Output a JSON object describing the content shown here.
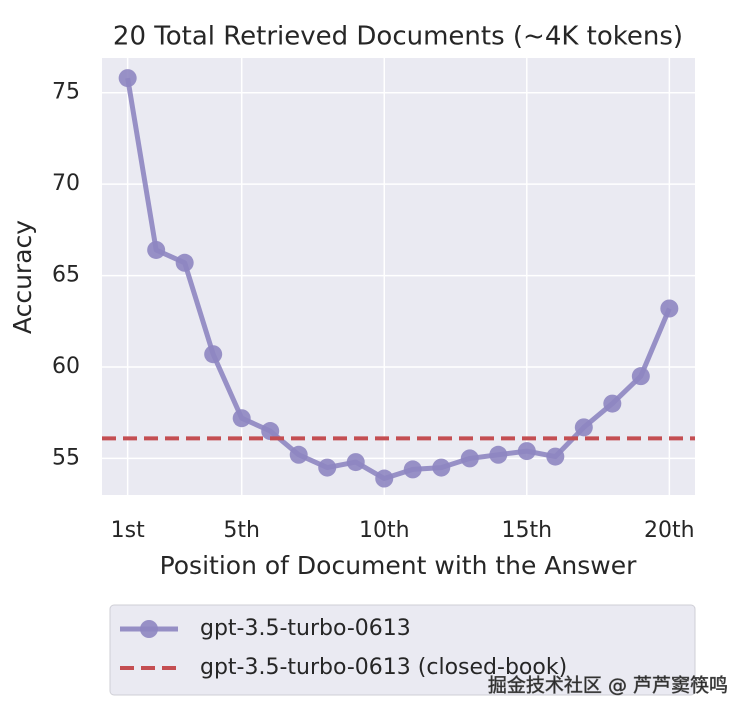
{
  "chart_data": {
    "type": "line",
    "title": "20 Total Retrieved Documents (~4K tokens)",
    "x_label": "Position of Document with the Answer",
    "y_label": "Accuracy",
    "x": [
      1,
      2,
      3,
      4,
      5,
      6,
      7,
      8,
      9,
      10,
      11,
      12,
      13,
      14,
      15,
      16,
      17,
      18,
      19,
      20
    ],
    "series": [
      {
        "name": "gpt-3.5-turbo-0613",
        "color": "#8e86c1",
        "values": [
          75.8,
          66.4,
          65.7,
          60.7,
          57.2,
          56.5,
          55.2,
          54.5,
          54.8,
          53.9,
          54.4,
          54.5,
          55.0,
          55.2,
          55.4,
          55.1,
          56.7,
          58.0,
          59.5,
          63.2
        ]
      },
      {
        "name": "gpt-3.5-turbo-0613 (closed-book)",
        "color": "#c44e52",
        "style": "dashed-hline",
        "value": 56.1
      }
    ],
    "xlim": [
      0.1,
      20.9
    ],
    "ylim": [
      53.0,
      76.9
    ],
    "xticks": [
      {
        "value": 1,
        "label": "1st"
      },
      {
        "value": 5,
        "label": "5th"
      },
      {
        "value": 10,
        "label": "10th"
      },
      {
        "value": 15,
        "label": "15th"
      },
      {
        "value": 20,
        "label": "20th"
      }
    ],
    "yticks": [
      55,
      60,
      65,
      70,
      75
    ],
    "grid": true,
    "legend": "below",
    "watermark": "掘金技术社区 @ 芦芦窦筷鸣"
  }
}
